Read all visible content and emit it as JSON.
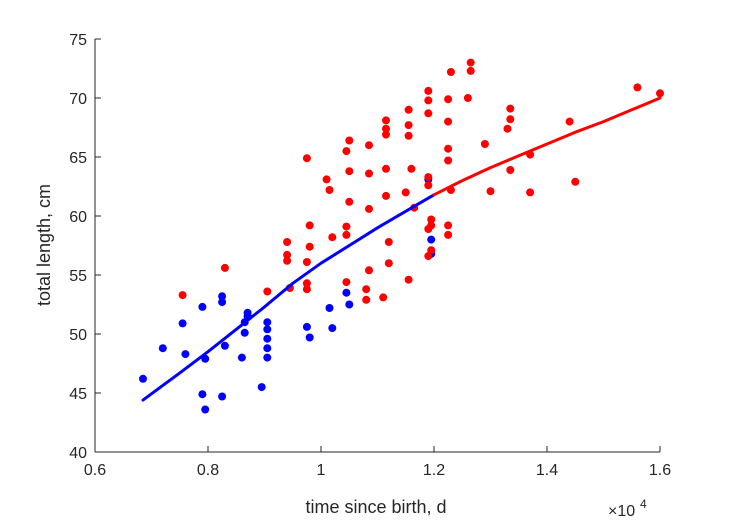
{
  "chart_data": {
    "type": "scatter",
    "title": "",
    "xlabel": "time since birth, d",
    "ylabel": "total length, cm",
    "xlim": [
      0.6,
      1.6
    ],
    "ylim": [
      40,
      75
    ],
    "x_ticks": [
      0.6,
      0.8,
      1,
      1.2,
      1.4,
      1.6
    ],
    "x_tick_labels": [
      "0.6",
      "0.8",
      "1",
      "1.2",
      "1.4",
      "1.6"
    ],
    "y_ticks": [
      40,
      45,
      50,
      55,
      60,
      65,
      70,
      75
    ],
    "y_tick_labels": [
      "40",
      "45",
      "50",
      "55",
      "60",
      "65",
      "70",
      "75"
    ],
    "x_exponent": {
      "base": "×10",
      "power": "4"
    },
    "grid": false,
    "legend": false,
    "series": [
      {
        "kind": "scatter",
        "color": "#0000ff",
        "points": [
          [
            0.685,
            46.2
          ],
          [
            0.72,
            48.8
          ],
          [
            0.755,
            50.9
          ],
          [
            0.76,
            48.3
          ],
          [
            0.79,
            52.3
          ],
          [
            0.79,
            44.9
          ],
          [
            0.795,
            47.9
          ],
          [
            0.795,
            43.6
          ],
          [
            0.825,
            52.7
          ],
          [
            0.825,
            53.2
          ],
          [
            0.825,
            44.7
          ],
          [
            0.83,
            49.0
          ],
          [
            0.86,
            48.0
          ],
          [
            0.865,
            51.0
          ],
          [
            0.865,
            50.1
          ],
          [
            0.87,
            51.5
          ],
          [
            0.87,
            51.8
          ],
          [
            0.895,
            45.5
          ],
          [
            0.905,
            51.0
          ],
          [
            0.905,
            50.4
          ],
          [
            0.905,
            49.6
          ],
          [
            0.905,
            48.8
          ],
          [
            0.905,
            48.0
          ],
          [
            0.975,
            50.6
          ],
          [
            0.98,
            49.7
          ],
          [
            1.015,
            52.2
          ],
          [
            1.02,
            50.5
          ],
          [
            1.045,
            53.5
          ],
          [
            1.05,
            52.5
          ],
          [
            1.19,
            63.1
          ],
          [
            1.195,
            58.0
          ],
          [
            1.195,
            56.8
          ]
        ]
      },
      {
        "kind": "scatter",
        "color": "#ff0000",
        "points": [
          [
            0.755,
            53.3
          ],
          [
            0.83,
            55.6
          ],
          [
            0.905,
            53.6
          ],
          [
            0.94,
            57.8
          ],
          [
            0.94,
            56.7
          ],
          [
            0.94,
            56.2
          ],
          [
            0.945,
            53.9
          ],
          [
            0.975,
            64.9
          ],
          [
            0.975,
            56.1
          ],
          [
            0.975,
            54.3
          ],
          [
            0.975,
            53.8
          ],
          [
            0.98,
            59.2
          ],
          [
            0.98,
            57.4
          ],
          [
            1.01,
            63.1
          ],
          [
            1.015,
            62.2
          ],
          [
            1.02,
            58.2
          ],
          [
            1.045,
            65.5
          ],
          [
            1.045,
            59.1
          ],
          [
            1.045,
            58.4
          ],
          [
            1.045,
            54.4
          ],
          [
            1.05,
            66.4
          ],
          [
            1.05,
            63.8
          ],
          [
            1.05,
            61.2
          ],
          [
            1.08,
            53.8
          ],
          [
            1.08,
            52.9
          ],
          [
            1.085,
            66.0
          ],
          [
            1.085,
            63.6
          ],
          [
            1.085,
            60.6
          ],
          [
            1.085,
            55.4
          ],
          [
            1.11,
            53.1
          ],
          [
            1.115,
            68.1
          ],
          [
            1.115,
            67.4
          ],
          [
            1.115,
            66.9
          ],
          [
            1.115,
            64.0
          ],
          [
            1.115,
            61.7
          ],
          [
            1.12,
            57.8
          ],
          [
            1.12,
            56.0
          ],
          [
            1.15,
            62.0
          ],
          [
            1.155,
            69.0
          ],
          [
            1.155,
            67.7
          ],
          [
            1.155,
            66.8
          ],
          [
            1.155,
            54.6
          ],
          [
            1.16,
            64.0
          ],
          [
            1.165,
            60.7
          ],
          [
            1.19,
            70.6
          ],
          [
            1.19,
            69.8
          ],
          [
            1.19,
            68.7
          ],
          [
            1.19,
            63.3
          ],
          [
            1.19,
            62.6
          ],
          [
            1.19,
            58.9
          ],
          [
            1.19,
            56.6
          ],
          [
            1.195,
            59.7
          ],
          [
            1.195,
            59.2
          ],
          [
            1.195,
            57.1
          ],
          [
            1.225,
            59.2
          ],
          [
            1.225,
            58.4
          ],
          [
            1.225,
            64.7
          ],
          [
            1.225,
            65.7
          ],
          [
            1.225,
            68.0
          ],
          [
            1.225,
            69.9
          ],
          [
            1.23,
            72.2
          ],
          [
            1.23,
            62.2
          ],
          [
            1.26,
            70.0
          ],
          [
            1.265,
            72.3
          ],
          [
            1.265,
            73.0
          ],
          [
            1.29,
            66.1
          ],
          [
            1.3,
            62.1
          ],
          [
            1.33,
            67.4
          ],
          [
            1.335,
            69.1
          ],
          [
            1.335,
            68.2
          ],
          [
            1.335,
            63.9
          ],
          [
            1.37,
            65.2
          ],
          [
            1.37,
            62.0
          ],
          [
            1.44,
            68.0
          ],
          [
            1.45,
            62.9
          ],
          [
            1.56,
            70.9
          ],
          [
            1.6,
            70.4
          ]
        ]
      },
      {
        "kind": "line",
        "color": "#0000ff",
        "x": [
          0.685,
          0.75,
          0.8,
          0.85,
          0.9,
          0.95,
          1.0,
          1.05,
          1.1,
          1.15,
          1.2
        ],
        "y": [
          44.4,
          46.7,
          48.5,
          50.4,
          52.3,
          54.3,
          56.0,
          57.5,
          59.0,
          60.4,
          61.8
        ]
      },
      {
        "kind": "line",
        "color": "#ff0000",
        "x": [
          1.2,
          1.25,
          1.3,
          1.35,
          1.4,
          1.45,
          1.5,
          1.55,
          1.6
        ],
        "y": [
          61.8,
          63.0,
          64.1,
          65.1,
          66.1,
          67.1,
          68.0,
          69.0,
          70.0
        ]
      }
    ]
  }
}
